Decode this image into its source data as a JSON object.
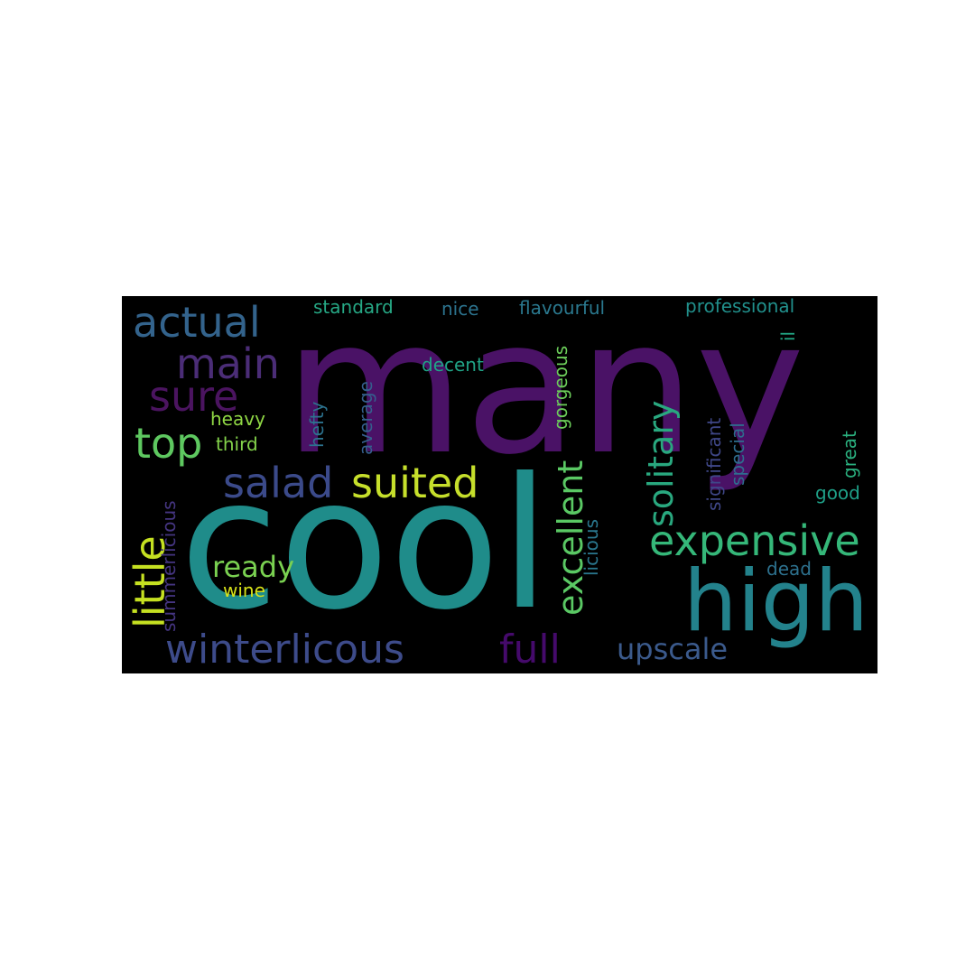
{
  "wordcloud": {
    "background": "#000000",
    "words": [
      {
        "text": "many",
        "color": "#4a1266"
      },
      {
        "text": "cool",
        "color": "#1f8c8a"
      },
      {
        "text": "high",
        "color": "#23828c"
      },
      {
        "text": "actual",
        "color": "#33638c"
      },
      {
        "text": "main",
        "color": "#4b2d77"
      },
      {
        "text": "sure",
        "color": "#4b1460"
      },
      {
        "text": "top",
        "color": "#5ec860"
      },
      {
        "text": "salad",
        "color": "#3b4a8a"
      },
      {
        "text": "suited",
        "color": "#c6df2b"
      },
      {
        "text": "expensive",
        "color": "#35b779"
      },
      {
        "text": "little",
        "color": "#c5e021"
      },
      {
        "text": "ready",
        "color": "#7ad151"
      },
      {
        "text": "winterlicous",
        "color": "#3d4b8a"
      },
      {
        "text": "full",
        "color": "#450a6b"
      },
      {
        "text": "upscale",
        "color": "#3b5a8c"
      },
      {
        "text": "excellent",
        "color": "#5ac864"
      },
      {
        "text": "solitary",
        "color": "#29a87f"
      },
      {
        "text": "standard",
        "color": "#26a885"
      },
      {
        "text": "nice",
        "color": "#2c738e"
      },
      {
        "text": "flavourful",
        "color": "#2a788e"
      },
      {
        "text": "professional",
        "color": "#21908c"
      },
      {
        "text": "decent",
        "color": "#20a386"
      },
      {
        "text": "gorgeous",
        "color": "#6ccd5a"
      },
      {
        "text": "heavy",
        "color": "#8fd744"
      },
      {
        "text": "third",
        "color": "#84d44b"
      },
      {
        "text": "hefty",
        "color": "#2c728e"
      },
      {
        "text": "average",
        "color": "#355f8d"
      },
      {
        "text": "licious",
        "color": "#2a778e"
      },
      {
        "text": "summerlicious",
        "color": "#453581"
      },
      {
        "text": "wine",
        "color": "#d7e219"
      },
      {
        "text": "significant",
        "color": "#3f4788"
      },
      {
        "text": "special",
        "color": "#2e6d8e"
      },
      {
        "text": "il",
        "color": "#22a785"
      },
      {
        "text": "great",
        "color": "#2ab07f"
      },
      {
        "text": "good",
        "color": "#1fa088"
      },
      {
        "text": "dead",
        "color": "#2d718e"
      }
    ]
  }
}
